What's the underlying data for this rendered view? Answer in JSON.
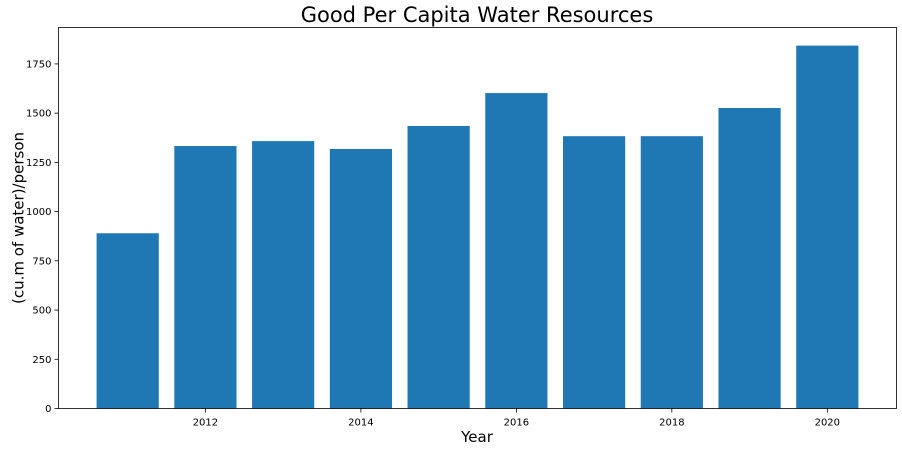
{
  "chart_data": {
    "type": "bar",
    "title": "Good Per Capita Water Resources",
    "xlabel": "Year",
    "ylabel": "(cu.m of water)/person",
    "x": [
      2011,
      2012,
      2013,
      2014,
      2015,
      2016,
      2017,
      2018,
      2019,
      2020
    ],
    "values": [
      890,
      1333,
      1358,
      1318,
      1435,
      1602,
      1383,
      1383,
      1526,
      1843
    ],
    "xticks": [
      2012,
      2014,
      2016,
      2018,
      2020
    ],
    "yticks": [
      0,
      250,
      500,
      750,
      1000,
      1250,
      1500,
      1750
    ],
    "xlim": [
      2010.11,
      2020.89
    ],
    "ylim": [
      0,
      1935
    ],
    "grid": false,
    "bar_color": "#1f77b4"
  }
}
